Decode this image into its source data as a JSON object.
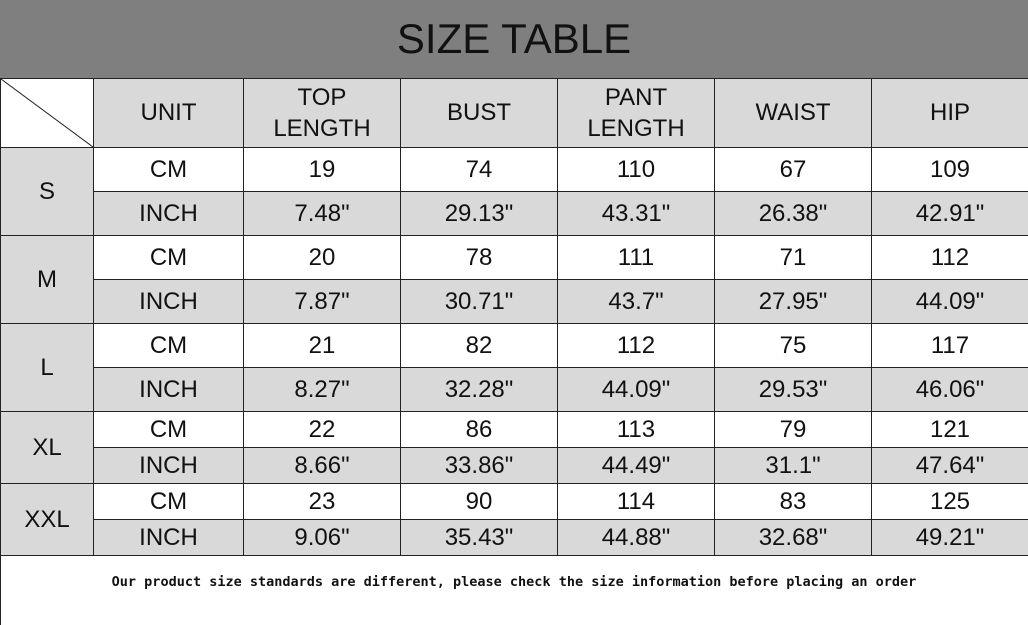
{
  "title": "SIZE TABLE",
  "headers": [
    "UNIT",
    "TOP\nLENGTH",
    "BUST",
    "PANT\nLENGTH",
    "WAIST",
    "HIP"
  ],
  "sizes": [
    {
      "size": "S",
      "rows": [
        [
          "CM",
          "19",
          "74",
          "110",
          "67",
          "109"
        ],
        [
          "INCH",
          "7.48\"",
          "29.13\"",
          "43.31\"",
          "26.38\"",
          "42.91\""
        ]
      ]
    },
    {
      "size": "M",
      "rows": [
        [
          "CM",
          "20",
          "78",
          "111",
          "71",
          "112"
        ],
        [
          "INCH",
          "7.87\"",
          "30.71\"",
          "43.7\"",
          "27.95\"",
          "44.09\""
        ]
      ]
    },
    {
      "size": "L",
      "rows": [
        [
          "CM",
          "21",
          "82",
          "112",
          "75",
          "117"
        ],
        [
          "INCH",
          "8.27\"",
          "32.28\"",
          "44.09\"",
          "29.53\"",
          "46.06\""
        ]
      ]
    },
    {
      "size": "XL",
      "rows": [
        [
          "CM",
          "22",
          "86",
          "113",
          "79",
          "121"
        ],
        [
          "INCH",
          "8.66\"",
          "33.86\"",
          "44.49\"",
          "31.1\"",
          "47.64\""
        ]
      ]
    },
    {
      "size": "XXL",
      "rows": [
        [
          "CM",
          "23",
          "90",
          "114",
          "83",
          "125"
        ],
        [
          "INCH",
          "9.06\"",
          "35.43\"",
          "44.88\"",
          "32.68\"",
          "49.21\""
        ]
      ]
    }
  ],
  "note": "Our product size standards are different, please check the size information before placing an order",
  "colors": {
    "title_bg": "#7f7f7f",
    "shaded": "#d9d9d9"
  }
}
